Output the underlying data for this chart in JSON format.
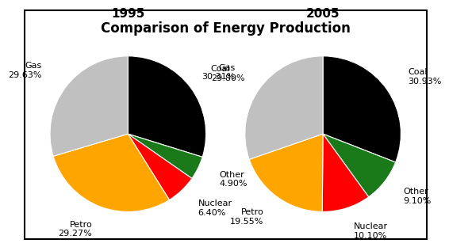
{
  "title": "Comparison of Energy Production",
  "chart1_year": "1995",
  "chart2_year": "2005",
  "values_1995": [
    29.8,
    4.9,
    6.4,
    29.27,
    29.63
  ],
  "values_2005": [
    30.93,
    9.1,
    10.1,
    19.55,
    30.31
  ],
  "colors": [
    "#000000",
    "#1a7a1a",
    "#ff0000",
    "#ffa500",
    "#c0c0c0"
  ],
  "label_texts_1995": [
    "Coal\n29.80%",
    "Other\n4.90%",
    "Nuclear\n6.40%",
    "Petro\n29.27%",
    "Gas\n29.63%"
  ],
  "label_texts_2005": [
    "Coal\n30.93%",
    "Other\n9.10%",
    "Nuclear\n10.10%",
    "Petro\n19.55%",
    "Gas\n30.31%"
  ],
  "label_distances_1995": [
    1.32,
    1.3,
    1.3,
    1.3,
    1.38
  ],
  "label_distances_2005": [
    1.32,
    1.3,
    1.3,
    1.3,
    1.38
  ],
  "bg_color": "#ffffff",
  "title_fontsize": 12,
  "year_fontsize": 11,
  "label_fontsize": 8,
  "border_color": "#000000"
}
